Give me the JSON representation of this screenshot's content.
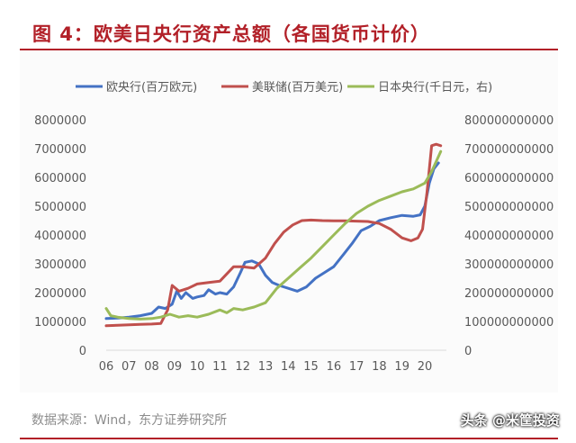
{
  "header": {
    "title": "图 4：欧美日央行资产总额（各国货币计价）"
  },
  "footer": {
    "source": "数据来源：Wind，东方证券研究所",
    "watermark": "头条 @米筐投资"
  },
  "chart_data": {
    "type": "line",
    "grid": false,
    "legend_position": "top",
    "x_ticks": [
      "06",
      "07",
      "08",
      "09",
      "10",
      "11",
      "12",
      "13",
      "14",
      "15",
      "16",
      "17",
      "18",
      "19",
      "20"
    ],
    "y_left": {
      "ylim": [
        0,
        8000000
      ],
      "ticks": [
        "0",
        "1000000",
        "2000000",
        "3000000",
        "4000000",
        "5000000",
        "6000000",
        "7000000",
        "8000000"
      ]
    },
    "y_right": {
      "ylim": [
        0,
        800000000000
      ],
      "ticks": [
        "0",
        "100000000000",
        "200000000000",
        "300000000000",
        "400000000000",
        "500000000000",
        "600000000000",
        "700000000000",
        "800000000000"
      ]
    },
    "series": [
      {
        "name": "欧央行(百万欧元)",
        "color": "#4472c4",
        "axis": "left",
        "x": [
          2006.0,
          2006.5,
          2007.0,
          2007.5,
          2008.0,
          2008.3,
          2008.6,
          2008.9,
          2009.1,
          2009.3,
          2009.5,
          2009.8,
          2010.0,
          2010.3,
          2010.5,
          2010.8,
          2011.0,
          2011.3,
          2011.6,
          2011.9,
          2012.1,
          2012.4,
          2012.7,
          2013.0,
          2013.3,
          2013.6,
          2014.0,
          2014.4,
          2014.8,
          2015.2,
          2015.6,
          2016.0,
          2016.4,
          2016.8,
          2017.2,
          2017.6,
          2018.0,
          2018.5,
          2019.0,
          2019.5,
          2019.8,
          2020.0,
          2020.2,
          2020.4,
          2020.6
        ],
        "y": [
          1100000,
          1120000,
          1150000,
          1200000,
          1280000,
          1500000,
          1450000,
          1600000,
          2050000,
          1800000,
          2000000,
          1800000,
          1850000,
          1900000,
          2100000,
          1950000,
          2000000,
          1950000,
          2200000,
          2700000,
          3050000,
          3100000,
          3000000,
          2600000,
          2350000,
          2250000,
          2150000,
          2050000,
          2200000,
          2500000,
          2700000,
          2900000,
          3300000,
          3700000,
          4150000,
          4300000,
          4500000,
          4600000,
          4680000,
          4650000,
          4700000,
          5000000,
          5800000,
          6300000,
          6500000
        ]
      },
      {
        "name": "美联储(百万美元)",
        "color": "#c0504d",
        "axis": "left",
        "x": [
          2006.0,
          2006.5,
          2007.0,
          2007.5,
          2008.0,
          2008.4,
          2008.7,
          2008.9,
          2009.2,
          2009.6,
          2010.0,
          2010.5,
          2011.0,
          2011.3,
          2011.6,
          2012.0,
          2012.5,
          2013.0,
          2013.4,
          2013.8,
          2014.2,
          2014.6,
          2015.0,
          2015.5,
          2016.0,
          2016.5,
          2017.0,
          2017.5,
          2018.0,
          2018.5,
          2019.0,
          2019.4,
          2019.7,
          2019.9,
          2020.1,
          2020.3,
          2020.5,
          2020.7
        ],
        "y": [
          850000,
          870000,
          880000,
          900000,
          910000,
          930000,
          1400000,
          2250000,
          2050000,
          2150000,
          2300000,
          2350000,
          2400000,
          2650000,
          2900000,
          2900000,
          2850000,
          3200000,
          3700000,
          4100000,
          4350000,
          4500000,
          4520000,
          4500000,
          4490000,
          4490000,
          4480000,
          4470000,
          4400000,
          4200000,
          3900000,
          3800000,
          3900000,
          4200000,
          5500000,
          7100000,
          7150000,
          7100000
        ]
      },
      {
        "name": "日本央行(千日元，右)",
        "color": "#9bbb59",
        "axis": "right",
        "x": [
          2006.0,
          2006.2,
          2006.5,
          2007.0,
          2007.5,
          2008.0,
          2008.4,
          2008.8,
          2009.2,
          2009.6,
          2010.0,
          2010.5,
          2011.0,
          2011.3,
          2011.6,
          2012.0,
          2012.5,
          2013.0,
          2013.5,
          2014.0,
          2014.5,
          2015.0,
          2015.5,
          2016.0,
          2016.5,
          2017.0,
          2017.5,
          2018.0,
          2018.5,
          2019.0,
          2019.5,
          2020.0,
          2020.3,
          2020.7
        ],
        "y": [
          145000000000,
          120000000000,
          115000000000,
          110000000000,
          108000000000,
          110000000000,
          115000000000,
          125000000000,
          115000000000,
          120000000000,
          115000000000,
          125000000000,
          140000000000,
          130000000000,
          145000000000,
          140000000000,
          150000000000,
          165000000000,
          215000000000,
          250000000000,
          285000000000,
          320000000000,
          360000000000,
          400000000000,
          440000000000,
          475000000000,
          500000000000,
          520000000000,
          535000000000,
          550000000000,
          560000000000,
          580000000000,
          620000000000,
          690000000000
        ]
      }
    ]
  }
}
